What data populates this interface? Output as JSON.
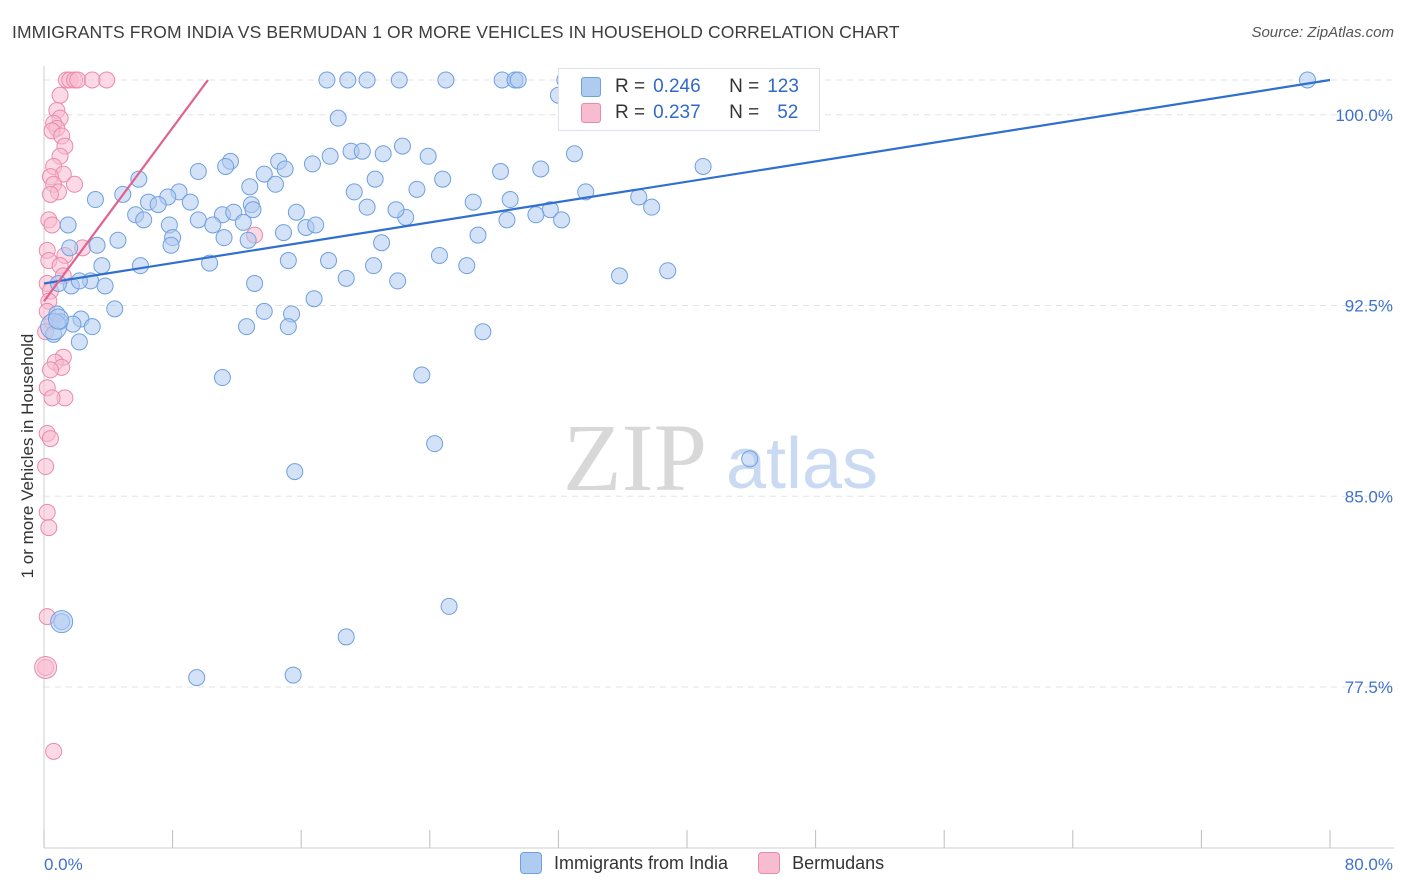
{
  "title": "IMMIGRANTS FROM INDIA VS BERMUDAN 1 OR MORE VEHICLES IN HOUSEHOLD CORRELATION CHART",
  "source": "Source: ZipAtlas.com",
  "watermark": {
    "zip": "ZIP",
    "atlas": "atlas"
  },
  "legend_top": {
    "rows": [
      {
        "r_label": "R =",
        "r_value": "0.246",
        "n_label": "N =",
        "n_value": "123"
      },
      {
        "r_label": "R =",
        "r_value": "0.237",
        "n_label": "N =",
        "n_value": "52"
      }
    ]
  },
  "legend_bottom": {
    "items": [
      {
        "label": "Immigrants from India"
      },
      {
        "label": "Bermudans"
      }
    ]
  },
  "colors": {
    "india_fill": "#aecbf0",
    "india_stroke": "#6fa0e0",
    "india_line": "#2f6fd0",
    "bermudan_fill": "#f7bcd0",
    "bermudan_stroke": "#ea8aab",
    "bermudan_line": "#e0628e",
    "tick_label": "#3f72c9",
    "grid": "#e3e3e3"
  },
  "chart_data": {
    "type": "scatter",
    "title": "IMMIGRANTS FROM INDIA VS BERMUDAN 1 OR MORE VEHICLES IN HOUSEHOLD CORRELATION CHART",
    "xlabel": "",
    "ylabel": "1 or more Vehicles in Household",
    "xlim": [
      0,
      80
    ],
    "ylim": [
      70.5,
      101.5
    ],
    "x_tick_labels": [
      "0.0%",
      "80.0%"
    ],
    "y_ticks": [
      77.5,
      85.0,
      92.5,
      100.0
    ],
    "y_tick_labels": [
      "77.5%",
      "85.0%",
      "92.5%",
      "100.0%"
    ],
    "grid": true,
    "legend_position": "bottom",
    "series": [
      {
        "name": "Immigrants from India",
        "R": 0.246,
        "N": 123,
        "trend": {
          "x": [
            0,
            80
          ],
          "y": [
            92.7,
            100.7
          ]
        },
        "points": [
          [
            17.6,
            100.7
          ],
          [
            18.9,
            100.7
          ],
          [
            20.1,
            100.7
          ],
          [
            22.1,
            100.7
          ],
          [
            25.0,
            100.7
          ],
          [
            28.5,
            100.7
          ],
          [
            29.3,
            100.7
          ],
          [
            32.4,
            100.7
          ],
          [
            40.5,
            100.7
          ],
          [
            78.6,
            100.7
          ],
          [
            32.0,
            100.1
          ],
          [
            18.3,
            99.2
          ],
          [
            22.3,
            98.1
          ],
          [
            19.1,
            97.9
          ],
          [
            21.1,
            97.8
          ],
          [
            23.9,
            97.7
          ],
          [
            17.8,
            97.7
          ],
          [
            11.6,
            97.5
          ],
          [
            14.6,
            97.5
          ],
          [
            11.3,
            97.3
          ],
          [
            16.7,
            97.4
          ],
          [
            15.0,
            97.2
          ],
          [
            9.6,
            97.1
          ],
          [
            13.7,
            97.0
          ],
          [
            20.6,
            96.8
          ],
          [
            5.9,
            96.8
          ],
          [
            12.8,
            96.5
          ],
          [
            28.4,
            97.1
          ],
          [
            23.2,
            96.4
          ],
          [
            14.4,
            96.6
          ],
          [
            29.0,
            96.0
          ],
          [
            4.9,
            96.2
          ],
          [
            3.2,
            96.0
          ],
          [
            8.4,
            96.3
          ],
          [
            19.3,
            96.3
          ],
          [
            7.7,
            96.1
          ],
          [
            33.7,
            96.3
          ],
          [
            37.0,
            96.1
          ],
          [
            6.5,
            95.9
          ],
          [
            9.1,
            95.9
          ],
          [
            20.1,
            95.7
          ],
          [
            12.9,
            95.8
          ],
          [
            31.5,
            95.6
          ],
          [
            7.1,
            95.8
          ],
          [
            5.7,
            95.4
          ],
          [
            11.1,
            95.4
          ],
          [
            11.8,
            95.5
          ],
          [
            15.7,
            95.5
          ],
          [
            13.0,
            95.6
          ],
          [
            22.5,
            95.3
          ],
          [
            9.6,
            95.2
          ],
          [
            28.8,
            95.2
          ],
          [
            32.2,
            95.2
          ],
          [
            1.5,
            95.0
          ],
          [
            6.2,
            95.2
          ],
          [
            7.8,
            95.0
          ],
          [
            10.5,
            95.0
          ],
          [
            12.4,
            95.1
          ],
          [
            16.3,
            94.9
          ],
          [
            16.9,
            95.0
          ],
          [
            8.0,
            94.5
          ],
          [
            11.2,
            94.5
          ],
          [
            14.9,
            94.7
          ],
          [
            7.9,
            94.2
          ],
          [
            3.3,
            94.2
          ],
          [
            4.6,
            94.4
          ],
          [
            1.6,
            94.1
          ],
          [
            12.7,
            94.4
          ],
          [
            21.0,
            94.3
          ],
          [
            24.6,
            93.8
          ],
          [
            17.7,
            93.6
          ],
          [
            15.2,
            93.6
          ],
          [
            20.5,
            93.4
          ],
          [
            10.3,
            93.5
          ],
          [
            3.6,
            93.4
          ],
          [
            6.0,
            93.4
          ],
          [
            18.8,
            92.9
          ],
          [
            22.0,
            92.8
          ],
          [
            13.1,
            92.7
          ],
          [
            35.8,
            93.0
          ],
          [
            2.9,
            92.8
          ],
          [
            1.7,
            92.6
          ],
          [
            3.8,
            92.6
          ],
          [
            0.9,
            92.7
          ],
          [
            2.2,
            92.8
          ],
          [
            16.8,
            92.1
          ],
          [
            4.4,
            91.7
          ],
          [
            13.7,
            91.6
          ],
          [
            15.4,
            91.5
          ],
          [
            2.3,
            91.3
          ],
          [
            0.8,
            91.5
          ],
          [
            1.0,
            91.2
          ],
          [
            1.8,
            91.1
          ],
          [
            3.0,
            91.0
          ],
          [
            12.6,
            91.0
          ],
          [
            15.2,
            91.0
          ],
          [
            27.3,
            90.8
          ],
          [
            0.6,
            90.7
          ],
          [
            2.2,
            90.4
          ],
          [
            11.1,
            89.0
          ],
          [
            23.5,
            89.1
          ],
          [
            24.3,
            86.4
          ],
          [
            43.9,
            85.8
          ],
          [
            15.6,
            85.3
          ],
          [
            25.2,
            80.0
          ],
          [
            1.1,
            79.4
          ],
          [
            18.8,
            78.8
          ],
          [
            9.5,
            77.2
          ],
          [
            15.5,
            77.3
          ],
          [
            29.5,
            100.7
          ],
          [
            42.2,
            100.7
          ],
          [
            26.7,
            95.9
          ],
          [
            19.8,
            97.9
          ],
          [
            33.0,
            97.8
          ],
          [
            41.0,
            97.3
          ],
          [
            24.8,
            96.8
          ],
          [
            21.9,
            95.6
          ],
          [
            27.0,
            94.6
          ],
          [
            38.8,
            93.2
          ],
          [
            26.3,
            93.4
          ],
          [
            30.6,
            95.4
          ],
          [
            30.9,
            97.2
          ],
          [
            37.8,
            95.7
          ]
        ]
      },
      {
        "name": "Bermudans",
        "R": 0.237,
        "N": 52,
        "trend": {
          "x": [
            0,
            10.2
          ],
          "y": [
            92.0,
            100.7
          ]
        },
        "points": [
          [
            1.4,
            100.7
          ],
          [
            1.6,
            100.7
          ],
          [
            1.9,
            100.7
          ],
          [
            2.1,
            100.7
          ],
          [
            3.0,
            100.7
          ],
          [
            3.9,
            100.7
          ],
          [
            1.0,
            100.1
          ],
          [
            0.8,
            99.5
          ],
          [
            1.0,
            99.2
          ],
          [
            0.6,
            99.0
          ],
          [
            0.8,
            98.8
          ],
          [
            0.5,
            98.7
          ],
          [
            1.1,
            98.5
          ],
          [
            1.3,
            98.1
          ],
          [
            1.0,
            97.7
          ],
          [
            0.6,
            97.3
          ],
          [
            1.2,
            97.0
          ],
          [
            0.4,
            96.9
          ],
          [
            0.6,
            96.6
          ],
          [
            1.9,
            96.6
          ],
          [
            0.9,
            96.3
          ],
          [
            0.4,
            96.2
          ],
          [
            0.3,
            95.2
          ],
          [
            0.5,
            95.0
          ],
          [
            2.4,
            94.1
          ],
          [
            0.2,
            94.0
          ],
          [
            1.3,
            93.8
          ],
          [
            0.3,
            93.6
          ],
          [
            1.0,
            93.4
          ],
          [
            1.2,
            93.0
          ],
          [
            0.2,
            92.7
          ],
          [
            0.4,
            92.4
          ],
          [
            0.3,
            92.0
          ],
          [
            0.2,
            91.6
          ],
          [
            0.5,
            91.2
          ],
          [
            0.1,
            90.8
          ],
          [
            1.2,
            89.8
          ],
          [
            0.7,
            89.6
          ],
          [
            1.1,
            89.4
          ],
          [
            0.4,
            89.3
          ],
          [
            0.2,
            88.6
          ],
          [
            1.3,
            88.2
          ],
          [
            0.5,
            88.2
          ],
          [
            0.2,
            86.8
          ],
          [
            0.4,
            86.6
          ],
          [
            0.1,
            85.5
          ],
          [
            0.2,
            83.7
          ],
          [
            0.3,
            83.1
          ],
          [
            0.2,
            79.6
          ],
          [
            0.1,
            77.6
          ],
          [
            0.6,
            74.3
          ],
          [
            13.1,
            94.6
          ]
        ]
      }
    ]
  }
}
